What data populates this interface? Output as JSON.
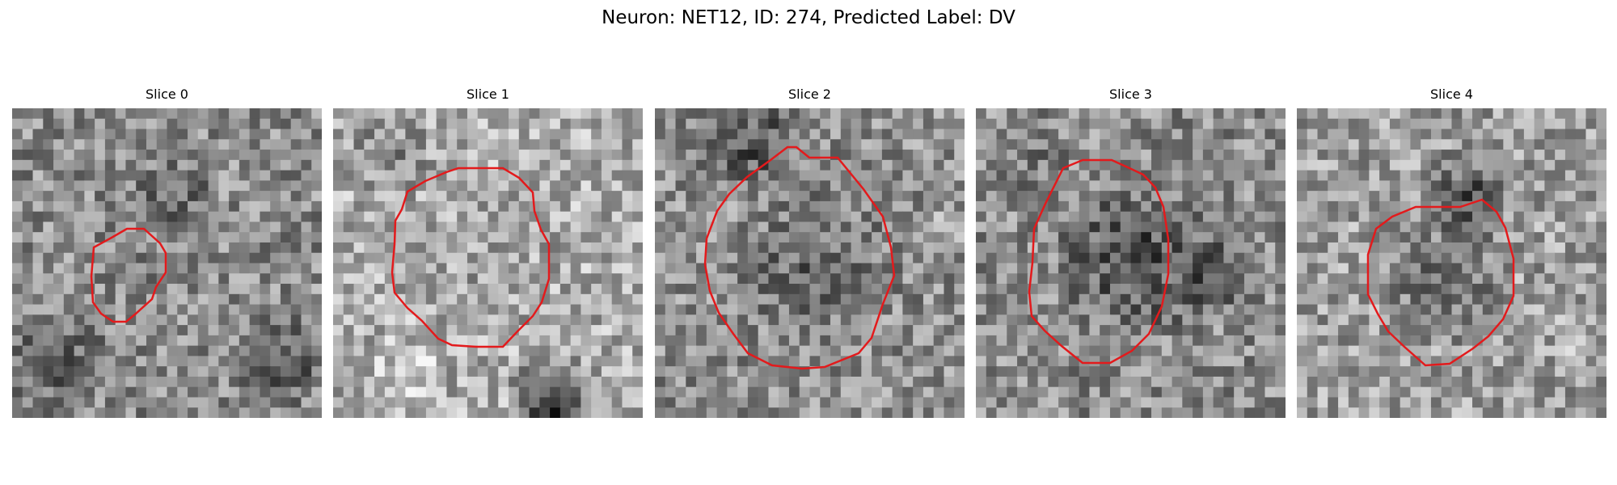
{
  "figure": {
    "title": "Neuron: NET12, ID: 274, Predicted Label: DV"
  },
  "contour_color": "#e31a1c",
  "colormap": "gray",
  "panels": [
    {
      "title": "Slice 0",
      "seed": 11,
      "image_description_key": "slice-0-image"
    },
    {
      "title": "Slice 1",
      "seed": 23,
      "image_description_key": "slice-1-image"
    },
    {
      "title": "Slice 2",
      "seed": 37,
      "image_description_key": "slice-2-image"
    },
    {
      "title": "Slice 3",
      "seed": 41,
      "image_description_key": "slice-3-image"
    },
    {
      "title": "Slice 4",
      "seed": 59,
      "image_description_key": "slice-4-image"
    }
  ]
}
